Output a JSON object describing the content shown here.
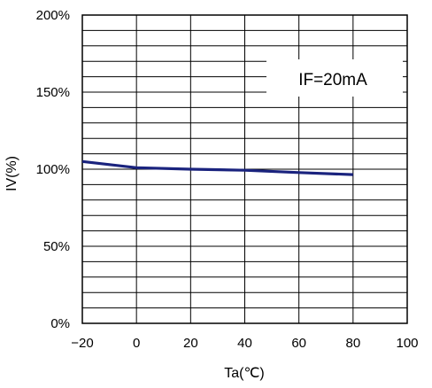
{
  "chart_data": {
    "type": "line",
    "xlabel": "Ta(℃)",
    "ylabel": "IV(%)",
    "xlim": [
      -20,
      100
    ],
    "ylim": [
      0,
      200
    ],
    "x_ticks": [
      "−20",
      "0",
      "20",
      "40",
      "60",
      "80",
      "100"
    ],
    "x_tick_values": [
      -20,
      0,
      20,
      40,
      60,
      80,
      100
    ],
    "y_ticks": [
      "0%",
      "50%",
      "100%",
      "150%",
      "200%"
    ],
    "y_tick_values": [
      0,
      50,
      100,
      150,
      200
    ],
    "y_grid_step": 10,
    "grid": true,
    "annotation": "IF=20mA",
    "series": [
      {
        "color": "#1a237e",
        "x": [
          -20,
          -10,
          0,
          20,
          40,
          60,
          80
        ],
        "y": [
          105,
          103,
          101,
          100,
          99.3,
          97.8,
          96.5
        ]
      }
    ]
  }
}
